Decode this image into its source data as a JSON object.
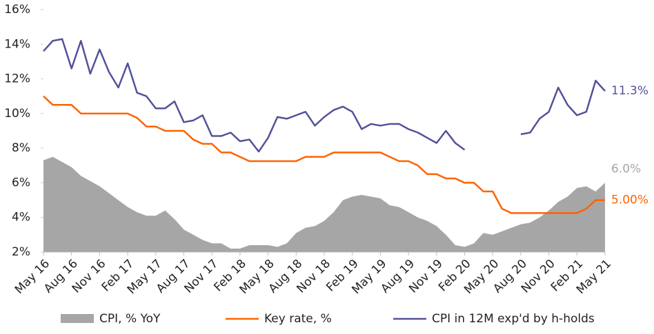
{
  "chart_data": {
    "type": "line",
    "categories": [
      "May 16",
      null,
      null,
      "Aug 16",
      null,
      null,
      "Nov 16",
      null,
      null,
      "Feb 17",
      null,
      null,
      "May 17",
      null,
      null,
      "Aug 17",
      null,
      null,
      "Nov 17",
      null,
      null,
      "Feb 18",
      null,
      null,
      "May 18",
      null,
      null,
      "Aug 18",
      null,
      null,
      "Nov 18",
      null,
      null,
      "Feb 19",
      null,
      null,
      "May 19",
      null,
      null,
      "Aug 19",
      null,
      null,
      "Nov 19",
      null,
      null,
      "Feb 20",
      null,
      null,
      "May 20",
      null,
      null,
      "Aug 20",
      null,
      null,
      "Nov 20",
      null,
      null,
      "Feb 21",
      null,
      null,
      "May 21"
    ],
    "series": [
      {
        "name": "CPI, % YoY",
        "color": "#a6a6a6",
        "kind": "area",
        "values": [
          7.3,
          7.5,
          7.2,
          6.9,
          6.4,
          6.1,
          5.8,
          5.4,
          5.0,
          4.6,
          4.3,
          4.1,
          4.1,
          4.4,
          3.9,
          3.3,
          3.0,
          2.7,
          2.5,
          2.5,
          2.2,
          2.2,
          2.4,
          2.4,
          2.4,
          2.3,
          2.5,
          3.1,
          3.4,
          3.5,
          3.8,
          4.3,
          5.0,
          5.2,
          5.3,
          5.2,
          5.1,
          4.7,
          4.6,
          4.3,
          4.0,
          3.8,
          3.5,
          3.0,
          2.4,
          2.3,
          2.5,
          3.1,
          3.0,
          3.2,
          3.4,
          3.6,
          3.7,
          4.0,
          4.4,
          4.9,
          5.2,
          5.7,
          5.8,
          5.5,
          6.0
        ]
      },
      {
        "name": "Key rate, %",
        "color": "#ff6200",
        "kind": "line",
        "values": [
          11.0,
          10.5,
          10.5,
          10.5,
          10.0,
          10.0,
          10.0,
          10.0,
          10.0,
          10.0,
          9.75,
          9.25,
          9.25,
          9.0,
          9.0,
          9.0,
          8.5,
          8.25,
          8.25,
          7.75,
          7.75,
          7.5,
          7.25,
          7.25,
          7.25,
          7.25,
          7.25,
          7.25,
          7.5,
          7.5,
          7.5,
          7.75,
          7.75,
          7.75,
          7.75,
          7.75,
          7.75,
          7.5,
          7.25,
          7.25,
          7.0,
          6.5,
          6.5,
          6.25,
          6.25,
          6.0,
          6.0,
          5.5,
          5.5,
          4.5,
          4.25,
          4.25,
          4.25,
          4.25,
          4.25,
          4.25,
          4.25,
          4.25,
          4.5,
          5.0,
          5.0
        ]
      },
      {
        "name": "CPI in 12M exp'd by h-holds",
        "color": "#525199",
        "kind": "line",
        "values": [
          13.6,
          14.2,
          14.3,
          12.6,
          14.2,
          12.3,
          13.7,
          12.4,
          11.5,
          12.9,
          11.2,
          11.0,
          10.3,
          10.3,
          10.7,
          9.5,
          9.6,
          9.9,
          8.7,
          8.7,
          8.9,
          8.4,
          8.5,
          7.8,
          8.6,
          9.8,
          9.7,
          9.9,
          10.1,
          9.3,
          9.8,
          10.2,
          10.4,
          10.1,
          9.1,
          9.4,
          9.3,
          9.4,
          9.4,
          9.1,
          8.9,
          8.6,
          8.3,
          9.0,
          8.3,
          7.9,
          null,
          null,
          null,
          null,
          null,
          8.8,
          8.9,
          9.7,
          10.1,
          11.5,
          10.5,
          9.9,
          10.1,
          11.9,
          11.3
        ]
      }
    ],
    "annotations": [
      {
        "text": "11.3%",
        "color": "#525199",
        "value": 11.3
      },
      {
        "text": "6.0%",
        "color": "#a6a6a6",
        "value": 6.0
      },
      {
        "text": "5.00%",
        "color": "#ff6200",
        "value": 5.0
      }
    ],
    "ylim": [
      2,
      16
    ],
    "yticks": [
      {
        "value": 2,
        "label": "2%"
      },
      {
        "value": 4,
        "label": "4%"
      },
      {
        "value": 6,
        "label": "6%"
      },
      {
        "value": 8,
        "label": "8%"
      },
      {
        "value": 10,
        "label": "10%"
      },
      {
        "value": 12,
        "label": "12%"
      },
      {
        "value": 14,
        "label": "14%"
      },
      {
        "value": 16,
        "label": "16%"
      }
    ],
    "grid": false,
    "legend": "bottom"
  }
}
